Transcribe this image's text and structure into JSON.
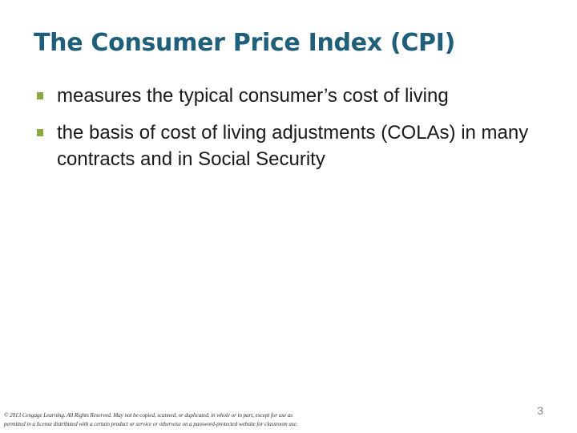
{
  "slide": {
    "title": "The Consumer Price Index (CPI)",
    "bullets": [
      "measures the typical consumer’s cost of living",
      "the basis of cost of living adjustments (COLAs) in many contracts and in Social Security"
    ],
    "bullet_color": "#8aa844",
    "title_color": "#1f5f7a"
  },
  "footer": {
    "copyright_line1": "© 2013 Cengage Learning. All Rights Reserved. May not be copied, scanned, or duplicated, in whole or in part, except for use as",
    "copyright_line2": "permitted in a license distributed with a certain product or service or otherwise on a password-protected website for classroom use."
  },
  "page_number": "3"
}
